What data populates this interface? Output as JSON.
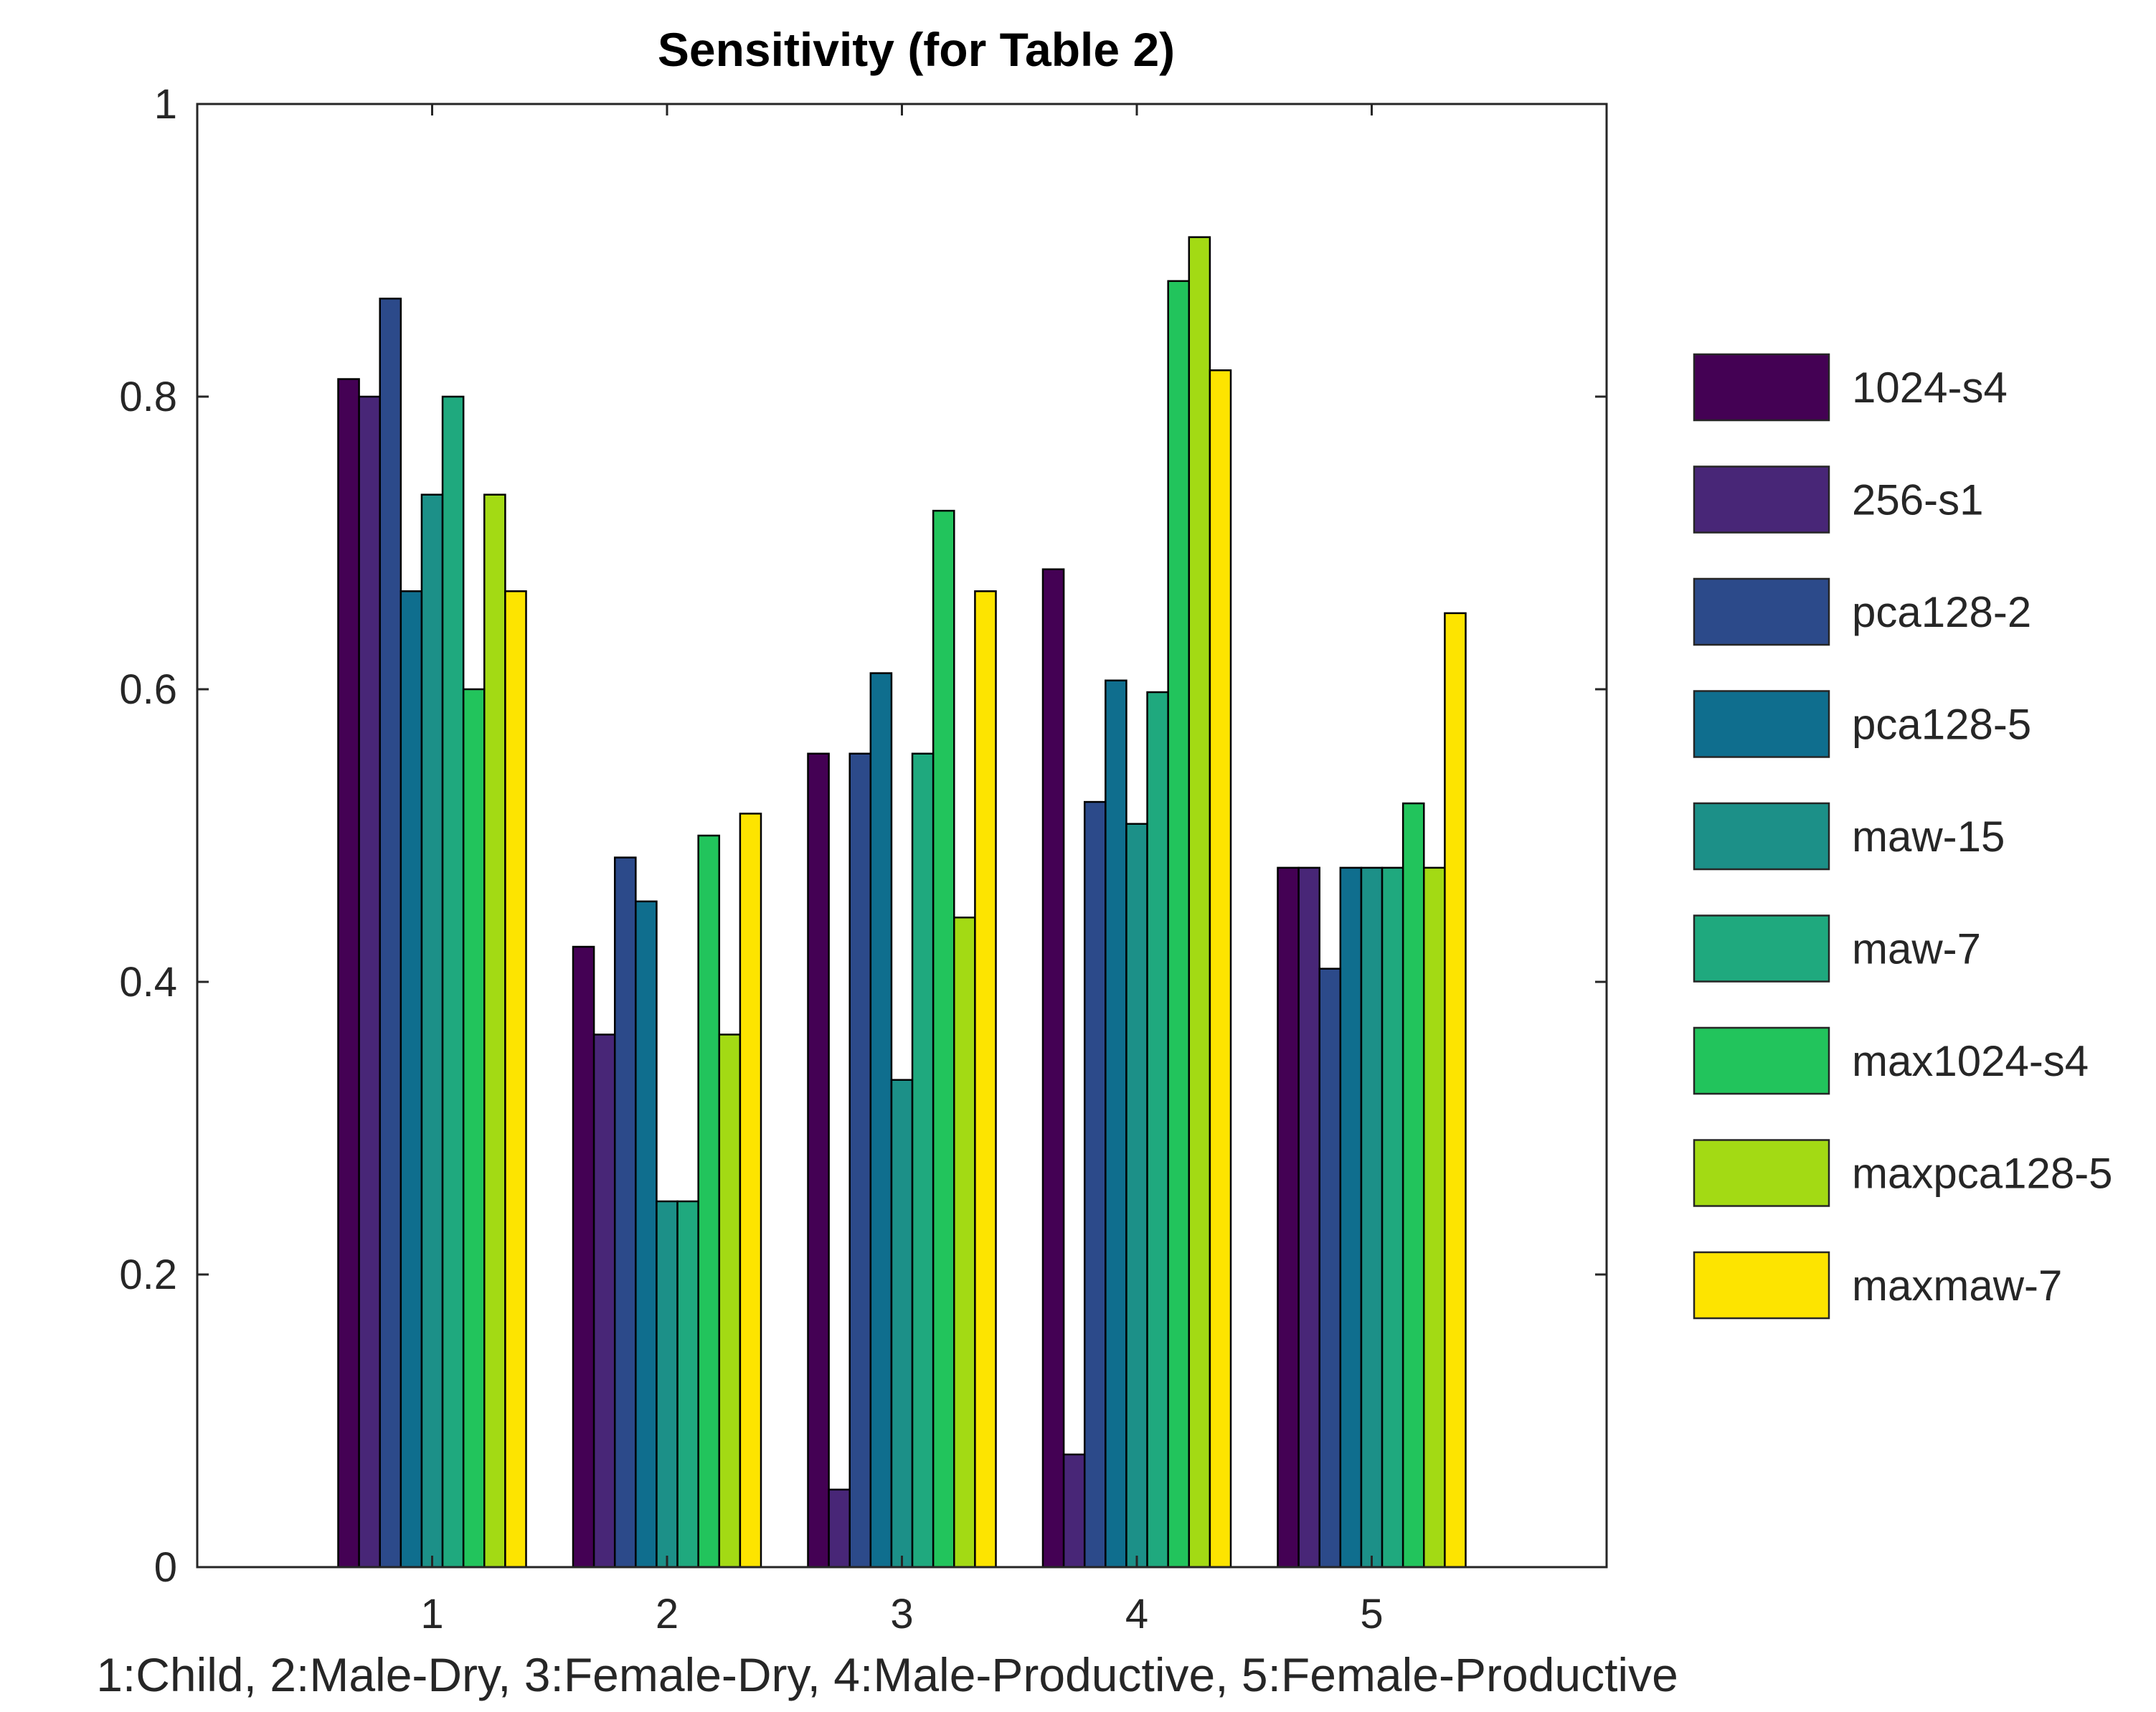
{
  "chart_data": {
    "type": "bar",
    "title": "Sensitivity (for Table 2)",
    "xlabel": "1:Child, 2:Male-Dry, 3:Female-Dry, 4:Male-Productive, 5:Female-Productive",
    "ylabel": "",
    "categories": [
      "1",
      "2",
      "3",
      "4",
      "5"
    ],
    "xlim": [
      0,
      6
    ],
    "ylim": [
      0,
      1
    ],
    "yticks": [
      0,
      0.2,
      0.4,
      0.6,
      0.8,
      1
    ],
    "ytick_labels": [
      "0",
      "0.2",
      "0.4",
      "0.6",
      "0.8",
      "1"
    ],
    "grid": false,
    "legend_position": "outside-right",
    "series": [
      {
        "name": "1024-s4",
        "color": "#440154",
        "values": [
          0.812,
          0.424,
          0.556,
          0.682,
          0.478
        ]
      },
      {
        "name": "256-s1",
        "color": "#482677",
        "values": [
          0.8,
          0.364,
          0.053,
          0.077,
          0.478
        ]
      },
      {
        "name": "pca128-2",
        "color": "#2C4A8A",
        "values": [
          0.867,
          0.485,
          0.556,
          0.523,
          0.409
        ]
      },
      {
        "name": "pca128-5",
        "color": "#0F6E8E",
        "values": [
          0.667,
          0.455,
          0.611,
          0.606,
          0.478
        ]
      },
      {
        "name": "maw-15",
        "color": "#1C9088",
        "values": [
          0.733,
          0.25,
          0.333,
          0.508,
          0.478
        ]
      },
      {
        "name": "maw-7",
        "color": "#1FA97E",
        "values": [
          0.8,
          0.25,
          0.556,
          0.598,
          0.478
        ]
      },
      {
        "name": "max1024-s4",
        "color": "#22C45C",
        "values": [
          0.6,
          0.5,
          0.722,
          0.879,
          0.522
        ]
      },
      {
        "name": "maxpca128-5",
        "color": "#A3DA14",
        "values": [
          0.733,
          0.364,
          0.444,
          0.909,
          0.478
        ]
      },
      {
        "name": "maxmaw-7",
        "color": "#FDE400",
        "values": [
          0.667,
          0.515,
          0.667,
          0.818,
          0.652
        ]
      }
    ]
  }
}
